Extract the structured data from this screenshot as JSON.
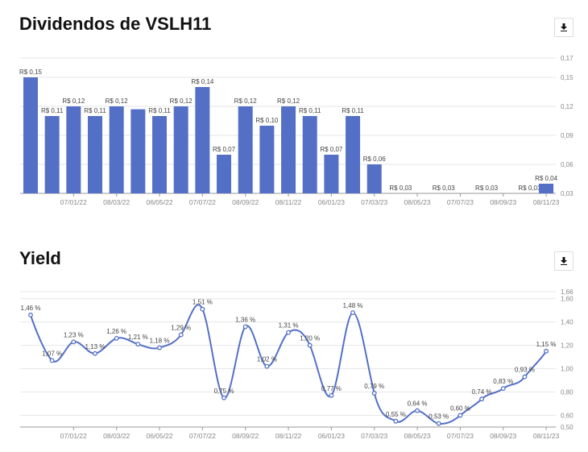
{
  "chart_data": [
    {
      "type": "bar",
      "title": "Dividendos de VSLH11",
      "color": "#5470c6",
      "value_prefix": "R$ ",
      "ylim": [
        0.03,
        0.17
      ],
      "yticks": [
        "0,17",
        "0,15",
        "0,12",
        "0,09",
        "0,06",
        "0,03"
      ],
      "ytick_values": [
        0.17,
        0.15,
        0.12,
        0.09,
        0.06,
        0.03
      ],
      "xtick_labels": [
        "07/01/22",
        "08/03/22",
        "06/05/22",
        "07/07/22",
        "08/09/22",
        "08/11/22",
        "06/01/23",
        "07/03/23",
        "08/05/23",
        "07/07/23",
        "08/09/23",
        "08/11/23"
      ],
      "xtick_indices": [
        2,
        4,
        6,
        8,
        10,
        12,
        14,
        16,
        18,
        20,
        22,
        24
      ],
      "values": [
        0.15,
        0.11,
        0.12,
        0.11,
        0.12,
        0.117,
        0.11,
        0.12,
        0.14,
        0.07,
        0.12,
        0.1,
        0.12,
        0.11,
        0.07,
        0.11,
        0.06,
        0.03,
        0.03,
        0.03,
        0.03,
        0.03,
        0.03,
        0.03,
        0.04
      ],
      "labels": [
        "R$ 0,15",
        "R$ 0,11",
        "R$ 0,12",
        "R$ 0,11",
        "R$ 0,12",
        "",
        "R$ 0,11",
        "R$ 0,12",
        "R$ 0,14",
        "R$ 0,07",
        "R$ 0,12",
        "R$ 0,10",
        "R$ 0,12",
        "R$ 0,11",
        "R$ 0,07",
        "R$ 0,11",
        "R$ 0,06",
        "R$ 0,03",
        "",
        "R$ 0,03",
        "",
        "R$ 0,03",
        "",
        "R$ 0,03",
        "R$ 0,04"
      ]
    },
    {
      "type": "line",
      "title": "Yield",
      "color": "#5470c6",
      "ylim": [
        0.5,
        1.66
      ],
      "yticks": [
        "1,66",
        "1,60",
        "1,40",
        "1,20",
        "1,00",
        "0,80",
        "0,60",
        "0,50"
      ],
      "ytick_values": [
        1.66,
        1.6,
        1.4,
        1.2,
        1.0,
        0.8,
        0.6,
        0.5
      ],
      "xtick_labels": [
        "07/01/22",
        "08/03/22",
        "06/05/22",
        "07/07/22",
        "08/09/22",
        "08/11/22",
        "06/01/23",
        "07/03/23",
        "08/05/23",
        "07/07/23",
        "08/09/23",
        "08/11/23"
      ],
      "xtick_indices": [
        2,
        4,
        6,
        8,
        10,
        12,
        14,
        16,
        18,
        20,
        22,
        24
      ],
      "values": [
        1.46,
        1.07,
        1.23,
        1.13,
        1.26,
        1.21,
        1.18,
        1.29,
        1.51,
        0.75,
        1.36,
        1.02,
        1.31,
        1.2,
        0.77,
        1.48,
        0.79,
        0.55,
        0.64,
        0.53,
        0.6,
        0.74,
        0.83,
        0.93,
        1.15
      ],
      "labels": [
        "1,46 %",
        "1,07 %",
        "1,23 %",
        "1,13 %",
        "1,26 %",
        "1,21 %",
        "1,18 %",
        "1,29 %",
        "1,51 %",
        "0,75 %",
        "1,36 %",
        "1,02 %",
        "1,31 %",
        "1,20 %",
        "0,77 %",
        "1,48 %",
        "0,79 %",
        "0,55 %",
        "0,64 %",
        "0,53 %",
        "0,60 %",
        "0,74 %",
        "0,83 %",
        "0,93 %",
        "1,15 %"
      ]
    }
  ],
  "buttons": {
    "download_icon": "download-icon"
  }
}
